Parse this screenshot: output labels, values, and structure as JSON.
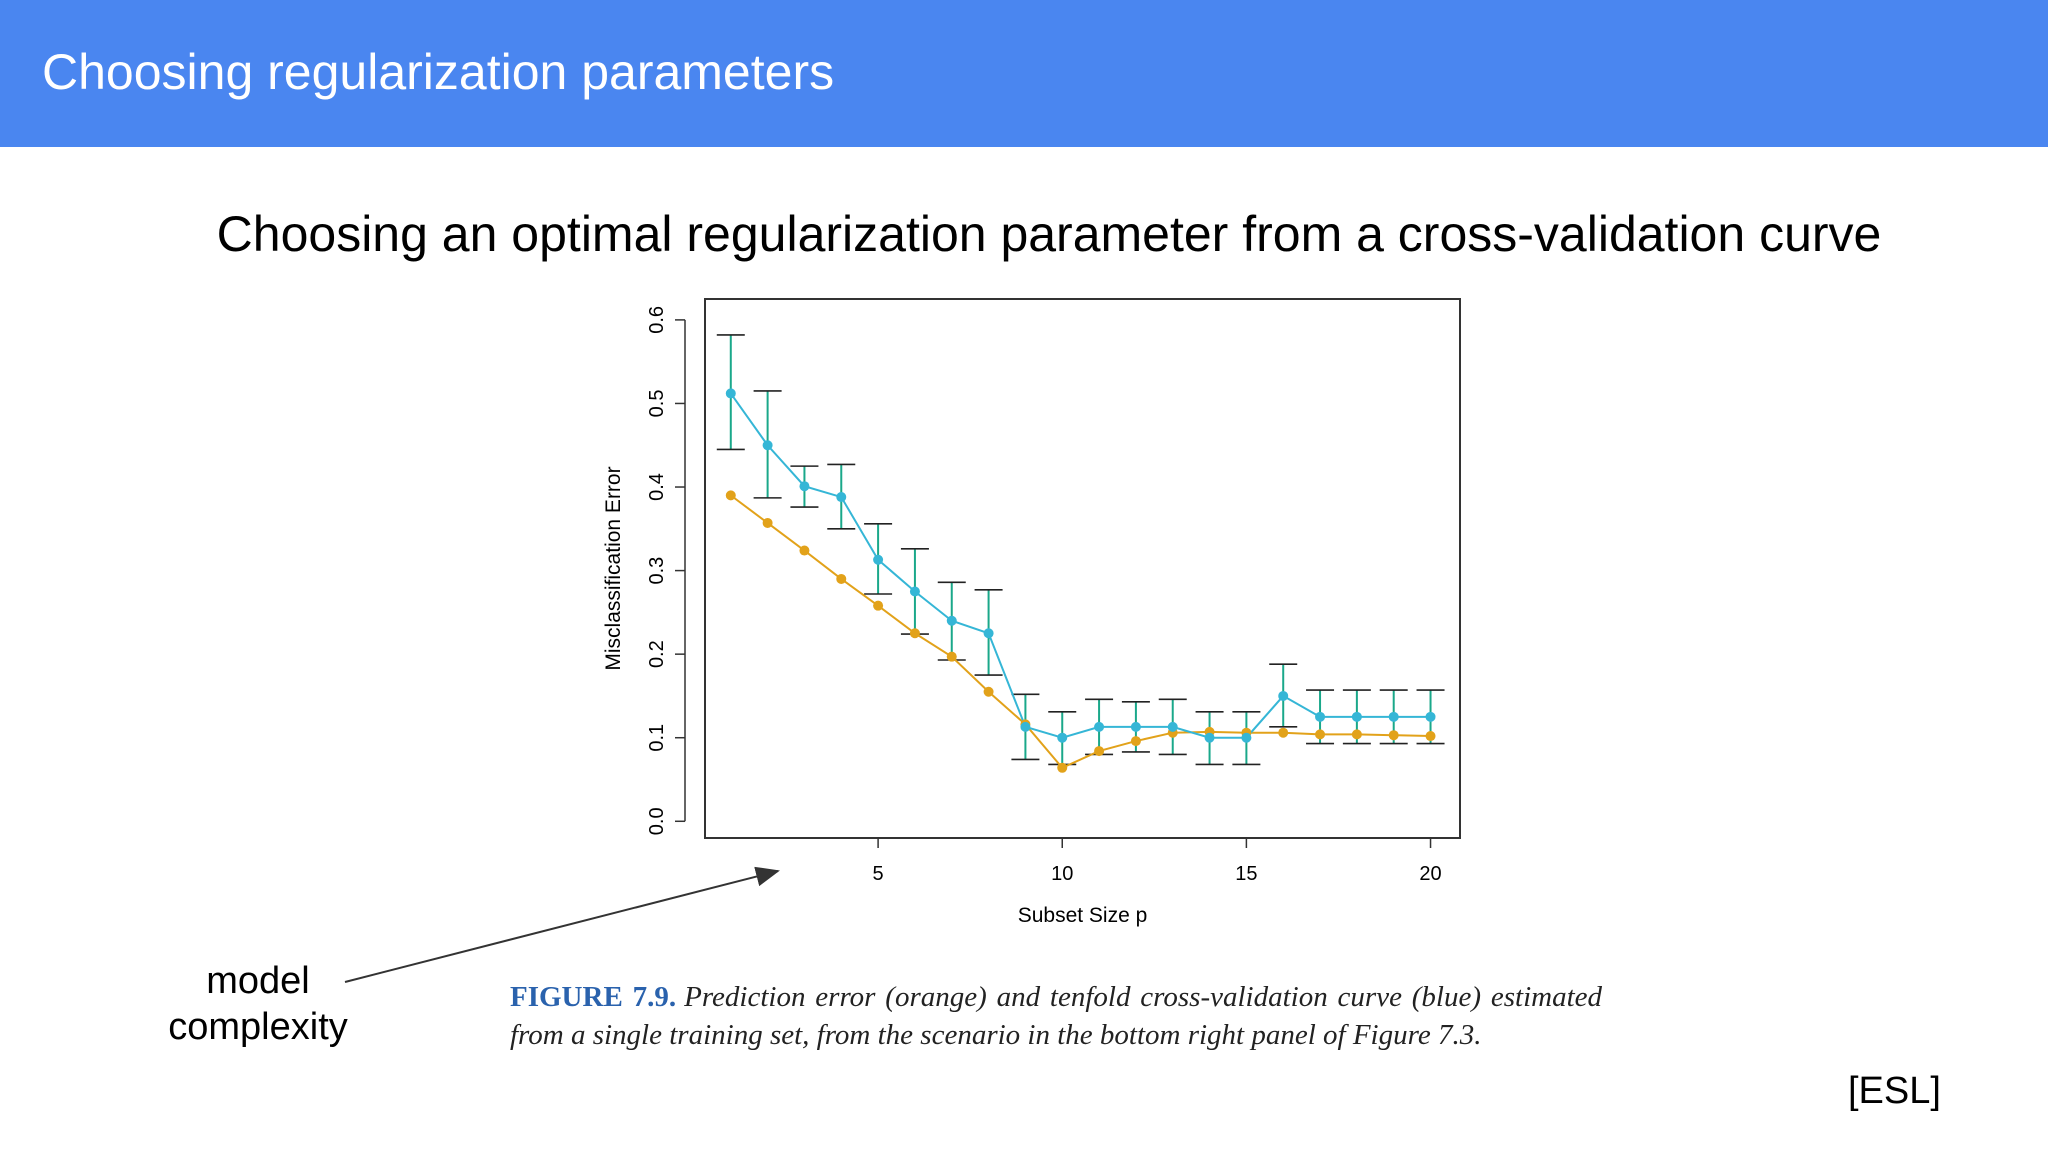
{
  "header": {
    "title": "Choosing regularization parameters"
  },
  "slide": {
    "subtitle": "Choosing an optimal regularization parameter from a cross-validation curve"
  },
  "annotation": {
    "line1": "model",
    "line2": "complexity"
  },
  "caption": {
    "label": "FIGURE 7.9.",
    "text": "Prediction error (orange) and tenfold cross-validation curve (blue) estimated from a single training set, from the scenario in the bottom right panel of Figure 7.3."
  },
  "source": {
    "tag": "[ESL]"
  },
  "colors": {
    "header_bg": "#4a86f0",
    "cv_curve": "#35b6d6",
    "pred_error": "#e2a21a",
    "error_bar": "#1aa88a"
  },
  "chart_data": {
    "type": "line",
    "xlabel": "Subset Size p",
    "ylabel": "Misclassification Error",
    "xlim": [
      0.3,
      20.8
    ],
    "ylim": [
      -0.02,
      0.625
    ],
    "xticks": [
      5,
      10,
      15,
      20
    ],
    "yticks": [
      0.0,
      0.1,
      0.2,
      0.3,
      0.4,
      0.5,
      0.6
    ],
    "xtick_labels": [
      "5",
      "10",
      "15",
      "20"
    ],
    "ytick_labels": [
      "0.0",
      "0.1",
      "0.2",
      "0.3",
      "0.4",
      "0.5",
      "0.6"
    ],
    "grid": false,
    "legend": "none",
    "x": [
      1,
      2,
      3,
      4,
      5,
      6,
      7,
      8,
      9,
      10,
      11,
      12,
      13,
      14,
      15,
      16,
      17,
      18,
      19,
      20
    ],
    "series": [
      {
        "values": [
          0.512,
          0.45,
          0.401,
          0.388,
          0.313,
          0.275,
          0.24,
          0.225,
          0.113,
          0.1,
          0.113,
          0.113,
          0.113,
          0.1,
          0.1,
          0.15,
          0.125,
          0.125,
          0.125,
          0.125
        ],
        "lower": [
          0.445,
          0.387,
          0.376,
          0.35,
          0.272,
          0.224,
          0.193,
          0.175,
          0.074,
          0.068,
          0.08,
          0.083,
          0.08,
          0.068,
          0.068,
          0.113,
          0.093,
          0.093,
          0.093,
          0.093
        ],
        "upper": [
          0.582,
          0.515,
          0.425,
          0.427,
          0.356,
          0.326,
          0.286,
          0.277,
          0.152,
          0.131,
          0.146,
          0.143,
          0.146,
          0.131,
          0.131,
          0.188,
          0.157,
          0.157,
          0.157,
          0.157
        ]
      },
      {
        "values": [
          0.39,
          0.357,
          0.324,
          0.29,
          0.258,
          0.225,
          0.197,
          0.155,
          0.116,
          0.064,
          0.084,
          0.096,
          0.106,
          0.107,
          0.106,
          0.106,
          0.104,
          0.104,
          0.103,
          0.102
        ]
      }
    ]
  }
}
